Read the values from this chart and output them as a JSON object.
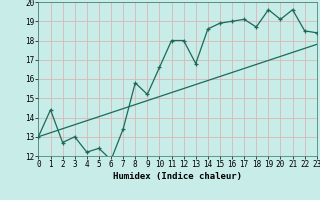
{
  "title": "",
  "xlabel": "Humidex (Indice chaleur)",
  "ylabel": "",
  "background_color": "#c8ece8",
  "grid_color": "#d8b8b8",
  "line_color": "#1a6b5a",
  "line1_x": [
    0,
    1,
    2,
    3,
    4,
    5,
    6,
    7,
    8,
    9,
    10,
    11,
    12,
    13,
    14,
    15,
    16,
    17,
    18,
    19,
    20,
    21,
    22,
    23
  ],
  "line1_y": [
    13.0,
    14.4,
    12.7,
    13.0,
    12.2,
    12.4,
    11.8,
    13.4,
    15.8,
    15.2,
    16.6,
    18.0,
    18.0,
    16.8,
    18.6,
    18.9,
    19.0,
    19.1,
    18.7,
    19.6,
    19.1,
    19.6,
    18.5,
    18.4
  ],
  "line2_x": [
    0,
    23
  ],
  "line2_y": [
    13.0,
    17.8
  ],
  "xlim": [
    0,
    23
  ],
  "ylim": [
    12,
    20
  ],
  "yticks": [
    12,
    13,
    14,
    15,
    16,
    17,
    18,
    19,
    20
  ],
  "xticks": [
    0,
    1,
    2,
    3,
    4,
    5,
    6,
    7,
    8,
    9,
    10,
    11,
    12,
    13,
    14,
    15,
    16,
    17,
    18,
    19,
    20,
    21,
    22,
    23
  ],
  "tick_fontsize": 5.5,
  "xlabel_fontsize": 6.5,
  "xlabel_fontweight": "bold"
}
